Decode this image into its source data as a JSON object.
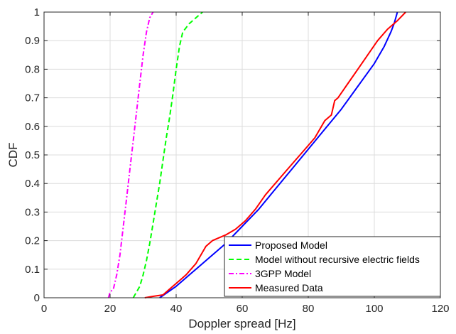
{
  "chart_data": {
    "type": "line",
    "title": "",
    "xlabel": "Doppler spread [Hz]",
    "ylabel": "CDF",
    "xlim": [
      0,
      120
    ],
    "ylim": [
      0,
      1
    ],
    "xticks": [
      0,
      20,
      40,
      60,
      80,
      100,
      120
    ],
    "yticks": [
      0,
      0.1,
      0.2,
      0.3,
      0.4,
      0.5,
      0.6,
      0.7,
      0.8,
      0.9,
      1
    ],
    "xtick_labels": [
      "0",
      "20",
      "40",
      "60",
      "80",
      "100",
      "120"
    ],
    "ytick_labels": [
      "0",
      "0.1",
      "0.2",
      "0.3",
      "0.4",
      "0.5",
      "0.6",
      "0.7",
      "0.8",
      "0.9",
      "1"
    ],
    "grid": true,
    "legend_position": "bottom-right",
    "series": [
      {
        "name": "Proposed Model",
        "color": "#0000ff",
        "dash": "solid",
        "x": [
          35,
          40,
          45,
          50,
          55,
          60,
          65,
          70,
          75,
          80,
          85,
          90,
          95,
          100,
          103,
          105,
          106,
          107
        ],
        "y": [
          0,
          0.04,
          0.09,
          0.14,
          0.19,
          0.25,
          0.31,
          0.38,
          0.45,
          0.52,
          0.59,
          0.66,
          0.74,
          0.82,
          0.88,
          0.93,
          0.96,
          1.0
        ]
      },
      {
        "name": "Model without recursive electric fields",
        "color": "#00ff00",
        "dash": "dashed",
        "x": [
          27,
          28,
          29,
          30,
          31,
          32,
          33,
          34,
          35,
          36,
          37,
          38,
          39,
          40,
          41,
          42,
          44,
          46,
          48
        ],
        "y": [
          0,
          0.02,
          0.04,
          0.08,
          0.13,
          0.19,
          0.26,
          0.33,
          0.4,
          0.48,
          0.56,
          0.63,
          0.71,
          0.8,
          0.88,
          0.93,
          0.96,
          0.98,
          1.0
        ]
      },
      {
        "name": "3GPP Model",
        "color": "#ff00ff",
        "dash": "dashdot",
        "x": [
          19.5,
          20,
          21,
          22,
          23,
          24,
          25,
          26,
          27,
          28,
          29,
          30,
          31,
          32,
          33
        ],
        "y": [
          0,
          0.02,
          0.03,
          0.08,
          0.15,
          0.25,
          0.35,
          0.45,
          0.55,
          0.65,
          0.75,
          0.85,
          0.93,
          0.98,
          1.0
        ]
      },
      {
        "name": "Measured Data",
        "color": "#ff0000",
        "dash": "solid",
        "x": [
          30.5,
          33,
          36,
          38,
          40,
          43,
          46,
          49,
          51,
          53,
          55,
          58,
          61,
          64,
          67,
          70,
          73,
          76,
          79,
          82,
          85,
          87,
          88,
          89,
          92,
          95,
          98,
          101,
          104,
          107,
          109.5
        ],
        "y": [
          0,
          0.005,
          0.01,
          0.03,
          0.05,
          0.08,
          0.12,
          0.18,
          0.2,
          0.21,
          0.22,
          0.24,
          0.27,
          0.31,
          0.36,
          0.4,
          0.44,
          0.48,
          0.52,
          0.56,
          0.62,
          0.64,
          0.69,
          0.7,
          0.75,
          0.8,
          0.85,
          0.9,
          0.94,
          0.97,
          1.0
        ]
      }
    ]
  }
}
